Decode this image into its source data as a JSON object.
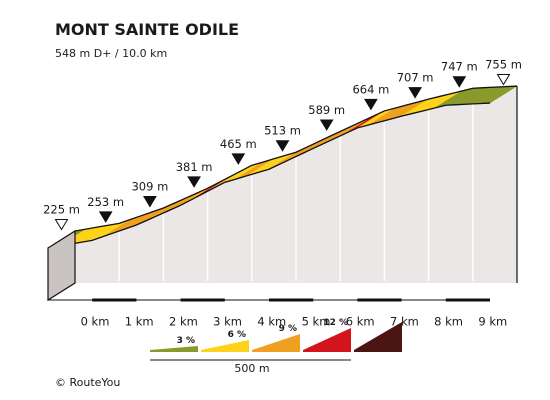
{
  "chart_data": {
    "type": "area",
    "title": "MONT SAINTE ODILE",
    "subtitle": "548 m D+ / 10.0 km",
    "x_unit": "km",
    "km_labels": [
      "0 km",
      "1 km",
      "2 km",
      "3 km",
      "4 km",
      "5 km",
      "6 km",
      "7 km",
      "8 km",
      "9 km"
    ],
    "points": [
      {
        "km": 0,
        "elev": 225,
        "label": "225 m",
        "marker": "open"
      },
      {
        "km": 1,
        "elev": 253,
        "label": "253 m",
        "marker": "filled"
      },
      {
        "km": 2,
        "elev": 309,
        "label": "309 m",
        "marker": "filled"
      },
      {
        "km": 3,
        "elev": 381,
        "label": "381 m",
        "marker": "filled"
      },
      {
        "km": 4,
        "elev": 465,
        "label": "465 m",
        "marker": "filled"
      },
      {
        "km": 5,
        "elev": 513,
        "label": "513 m",
        "marker": "filled"
      },
      {
        "km": 6,
        "elev": 589,
        "label": "589 m",
        "marker": "filled"
      },
      {
        "km": 7,
        "elev": 664,
        "label": "664 m",
        "marker": "filled"
      },
      {
        "km": 8,
        "elev": 707,
        "label": "707 m",
        "marker": "filled"
      },
      {
        "km": 9,
        "elev": 747,
        "label": "747 m",
        "marker": "filled"
      },
      {
        "km": 10,
        "elev": 755,
        "label": "755 m",
        "marker": "open"
      }
    ],
    "segment_grades_pct": [
      2,
      3,
      4,
      5,
      4,
      6,
      7,
      7,
      8,
      7,
      6,
      7,
      5,
      9,
      6,
      5,
      4,
      6,
      5,
      4,
      6,
      7,
      8,
      7,
      7,
      8,
      8,
      9,
      5,
      6,
      6,
      8,
      5,
      4,
      3,
      2,
      2,
      2,
      1,
      0.5
    ],
    "legend": {
      "items": [
        {
          "label": "3 %",
          "color": "#8a9a2a"
        },
        {
          "label": "6 %",
          "color": "#ffd21a"
        },
        {
          "label": "9 %",
          "color": "#f0a020"
        },
        {
          "label": "12 %",
          "color": "#d4141c"
        },
        {
          "label": "",
          "color": "#4a1512"
        }
      ],
      "scale_label": "500 m"
    },
    "colors": {
      "green": "#8a9a2a",
      "yellow": "#ffd21a",
      "orange": "#f0a020",
      "red": "#d4141c",
      "darkred": "#4a1512",
      "side_face": "#ebe7e6",
      "outline": "#111111"
    }
  },
  "footer": {
    "credit": "©  RouteYou"
  }
}
